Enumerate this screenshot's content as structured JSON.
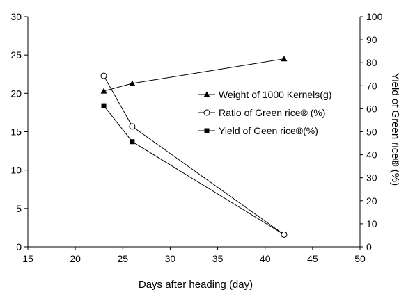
{
  "chart_data": {
    "type": "line",
    "xlabel": "Days after heading (day)",
    "ylabel": "",
    "y2label": "Yield of Green rice® (%)",
    "xlim": [
      15,
      50
    ],
    "xticks": [
      15,
      20,
      25,
      30,
      35,
      40,
      45,
      50
    ],
    "ylim": [
      0,
      30
    ],
    "yticks": [
      0,
      5,
      10,
      15,
      20,
      25,
      30
    ],
    "y2lim": [
      0,
      100
    ],
    "y2ticks": [
      0,
      10,
      20,
      30,
      40,
      50,
      60,
      70,
      80,
      90,
      100
    ],
    "grid": false,
    "legend_position": "right",
    "series": [
      {
        "name": "Weight of 1000 Kernels(g)",
        "axis": "left",
        "marker": "triangle-filled",
        "x": [
          23,
          26,
          42
        ],
        "y": [
          20.3,
          21.3,
          24.5
        ]
      },
      {
        "name": "Ratio of Green rice® (%)",
        "axis": "right",
        "marker": "circle-open",
        "x": [
          23,
          26,
          42
        ],
        "y": [
          74.3,
          52.3,
          5.3
        ]
      },
      {
        "name": "Yield of Geen rice®(%)",
        "axis": "right",
        "marker": "square-filled",
        "x": [
          23,
          26,
          42
        ],
        "y": [
          61.3,
          45.7,
          5.3
        ]
      }
    ]
  }
}
